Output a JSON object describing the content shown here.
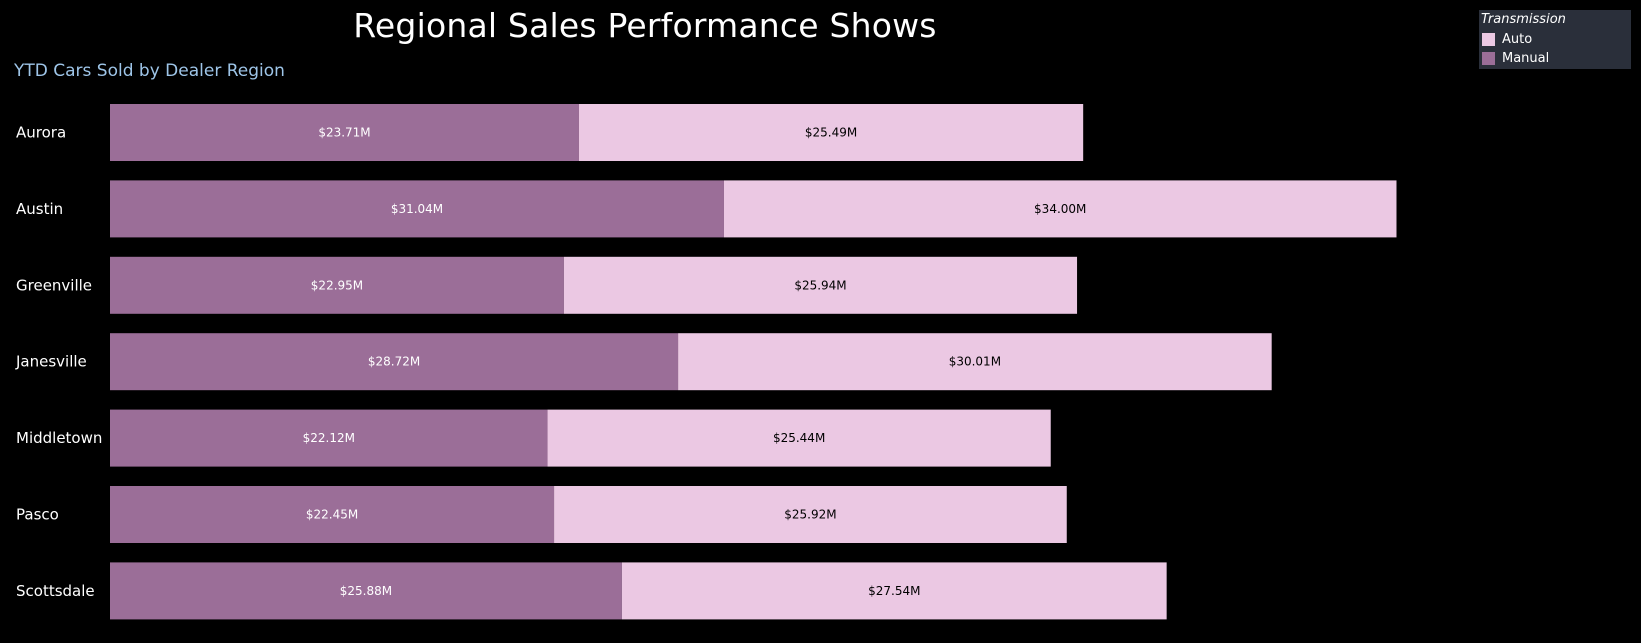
{
  "title": "Regional Sales Performance Shows",
  "subtitle": "YTD Cars Sold by Dealer Region",
  "legend": {
    "title": "Transmission",
    "items": [
      {
        "label": "Auto",
        "color": "#ebc8e3"
      },
      {
        "label": "Manual",
        "color": "#9b6e98"
      }
    ]
  },
  "chart_data": {
    "type": "bar",
    "orientation": "horizontal",
    "stacked": true,
    "title": "Regional Sales Performance Shows",
    "subtitle": "YTD Cars Sold by Dealer Region",
    "categories": [
      "Aurora",
      "Austin",
      "Greenville",
      "Janesville",
      "Middletown",
      "Pasco",
      "Scottsdale"
    ],
    "series": [
      {
        "name": "Manual",
        "color": "#9b6e98",
        "values": [
          23.71,
          31.04,
          22.95,
          28.72,
          22.12,
          22.45,
          25.88
        ],
        "labels": [
          "$23.71M",
          "$31.04M",
          "$22.95M",
          "$28.72M",
          "$22.12M",
          "$22.45M",
          "$25.88M"
        ]
      },
      {
        "name": "Auto",
        "color": "#ebc8e3",
        "values": [
          25.49,
          34.0,
          25.94,
          30.01,
          25.44,
          25.92,
          27.54
        ],
        "labels": [
          "$25.49M",
          "$34.00M",
          "$25.94M",
          "$30.01M",
          "$25.44M",
          "$25.92M",
          "$27.54M"
        ]
      }
    ],
    "unit": "$M",
    "grid": false,
    "legend_position": "top-right"
  }
}
